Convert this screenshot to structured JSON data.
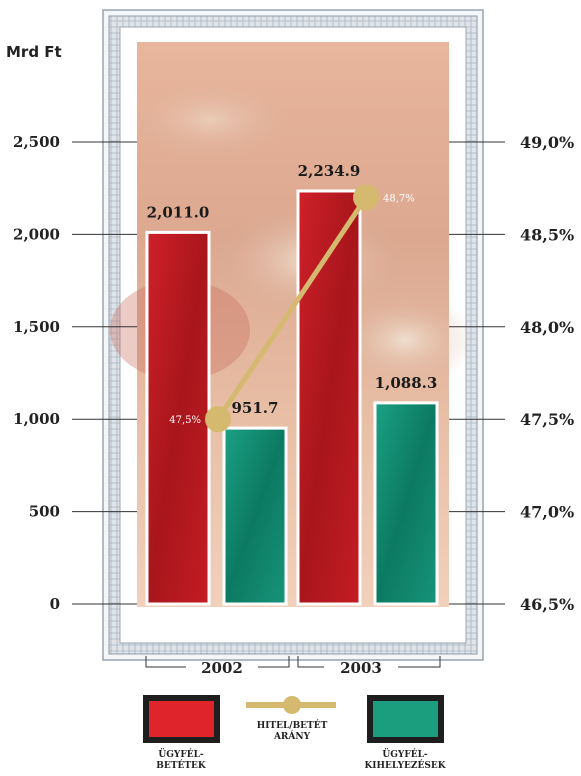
{
  "chart_data": {
    "type": "bar",
    "ylabel": "Mrd Ft",
    "categories": [
      "2002",
      "2003"
    ],
    "series": [
      {
        "name": "ÜGYFÉL-BETÉTEK",
        "values": [
          2011.0,
          2234.9
        ],
        "labels": [
          "2,011.0",
          "2,234.9"
        ],
        "color": "#e0242c"
      },
      {
        "name": "ÜGYFÉL-KIHELYEZÉSEK",
        "values": [
          951.7,
          1088.3
        ],
        "labels": [
          "951.7",
          "1,088.3"
        ],
        "color": "#1a9e7e"
      }
    ],
    "line_series": {
      "name": "HITEL/BETÉT ARÁNY",
      "values": [
        47.5,
        48.7
      ],
      "labels": [
        "47,5%",
        "48,7%"
      ],
      "color": "#d4b96f"
    },
    "ylim": [
      0,
      2500
    ],
    "y_ticks": [
      0,
      500,
      1000,
      1500,
      2000,
      2500
    ],
    "y_tick_labels": [
      "0",
      "500",
      "1,000",
      "1,500",
      "2,000",
      "2,500"
    ],
    "y2lim": [
      46.5,
      49.0
    ],
    "y2_ticks": [
      46.5,
      47.0,
      47.5,
      48.0,
      48.5,
      49.0
    ],
    "y2_tick_labels": [
      "46,5%",
      "47,0%",
      "47,5%",
      "48,0%",
      "48,5%",
      "49,0%"
    ],
    "legend_position": "bottom",
    "legend_labels": {
      "deposits": [
        "ÜGYFÉL-",
        "BETÉTEK"
      ],
      "ratio": [
        "HITEL/BETÉT",
        "ARÁNY"
      ],
      "loans": [
        "ÜGYFÉL-",
        "KIHELYEZÉSEK"
      ]
    }
  }
}
